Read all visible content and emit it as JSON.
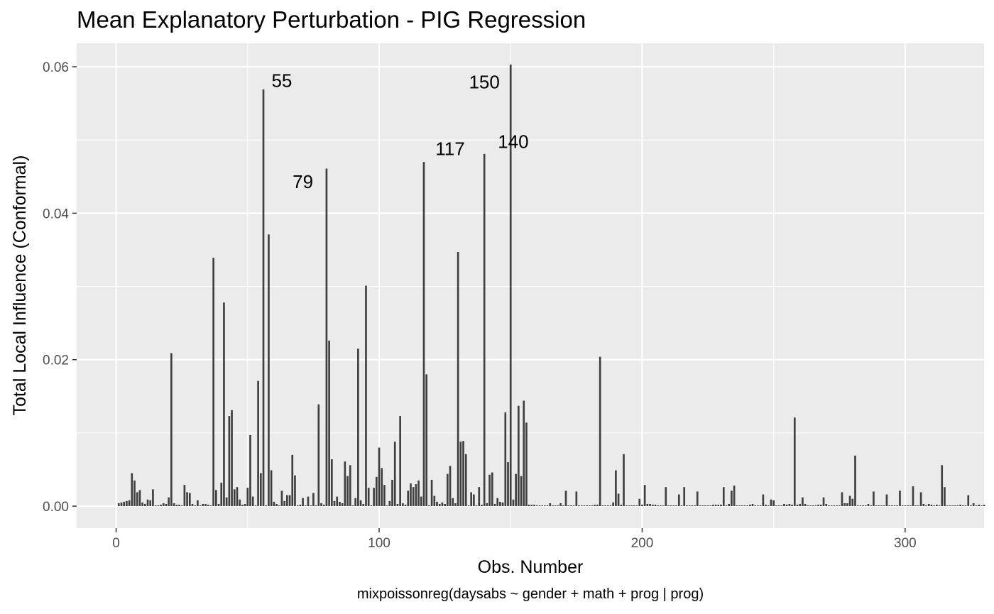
{
  "chart_data": {
    "type": "bar",
    "title": "Mean Explanatory Perturbation - PIG Regression",
    "xlabel": "Obs. Number",
    "ylabel": "Total Local Influence (Conformal)",
    "caption": "mixpoissonreg(daysabs ~ gender + math + prog | prog)",
    "xlim": [
      -15,
      330
    ],
    "ylim": [
      -0.003,
      0.0632
    ],
    "x_ticks": [
      0,
      100,
      200,
      300
    ],
    "x_tick_labels": [
      "0",
      "100",
      "200",
      "300"
    ],
    "y_ticks": [
      0.0,
      0.02,
      0.04,
      0.06
    ],
    "y_tick_labels": [
      "0.00",
      "0.02",
      "0.04",
      "0.06"
    ],
    "grid": true,
    "bar_color": "#3f3f3f",
    "panel_color": "#ebebeb",
    "grid_color": "#ffffff",
    "values": [
      0.0004,
      0.0005,
      0.0006,
      0.0007,
      0.0008,
      0.0045,
      0.0035,
      0.0019,
      0.0022,
      0.0005,
      0.0003,
      0.0009,
      0.0008,
      0.0023,
      0.0001,
      0.0001,
      0.0002,
      0.0004,
      0.0003,
      0.0012,
      0.0209,
      0.0004,
      0.0002,
      0.0002,
      0.0001,
      0.0029,
      0.0019,
      0.0018,
      0.0003,
      0.0001,
      0.0008,
      0.0001,
      0.0003,
      0.0003,
      0.0002,
      0.0001,
      0.0339,
      0.0022,
      0.0003,
      0.0032,
      0.0278,
      0.0012,
      0.0123,
      0.0131,
      0.0023,
      0.0026,
      0.0009,
      0.0002,
      0.0003,
      0.0025,
      0.0097,
      0.0013,
      0.0001,
      0.0171,
      0.0045,
      0.0569,
      0.0001,
      0.0371,
      0.0049,
      0.0006,
      0.0003,
      0.0001,
      0.0021,
      0.0007,
      0.0015,
      0.0015,
      0.007,
      0.0042,
      0.0001,
      0.0002,
      0.0011,
      0.0001,
      0.0013,
      0.0001,
      0.0018,
      0.0001,
      0.0139,
      0.0004,
      0.0002,
      0.0461,
      0.0226,
      0.0064,
      0.0007,
      0.0013,
      0.0006,
      0.0004,
      0.0061,
      0.0041,
      0.0056,
      0.0001,
      0.0011,
      0.0215,
      0.0008,
      0.0003,
      0.0301,
      0.0025,
      0.0001,
      0.0025,
      0.004,
      0.008,
      0.0052,
      0.0029,
      0.0001,
      0.0007,
      0.0036,
      0.0088,
      0.0003,
      0.0123,
      0.0004,
      0.0002,
      0.0021,
      0.0031,
      0.0026,
      0.003,
      0.0035,
      0.0013,
      0.047,
      0.018,
      0.0001,
      0.0036,
      0.0014,
      0.0006,
      0.0003,
      0.0005,
      0.0003,
      0.0044,
      0.0055,
      0.0011,
      0.0004,
      0.0347,
      0.0088,
      0.0089,
      0.0071,
      0.0001,
      0.0019,
      0.0016,
      0.0001,
      0.0026,
      0.0002,
      0.0481,
      0.0004,
      0.0043,
      0.0046,
      0.0003,
      0.0011,
      0.0006,
      0.0005,
      0.0128,
      0.006,
      0.0603,
      0.0009,
      0.0044,
      0.0137,
      0.0041,
      0.0144,
      0.0114,
      0.0002,
      0.0002,
      0.0002,
      0.0001,
      0.0001,
      0.0001,
      0.0001,
      0.0001,
      0.0004,
      0.0001,
      0.0001,
      0.0001,
      0.0004,
      0.0001,
      0.0021,
      0.0001,
      0.0001,
      0.0001,
      0.002,
      0.0001,
      0.0001,
      0.0001,
      0.0001,
      0.0001,
      0.0001,
      0.0002,
      0.0002,
      0.0204,
      0.0001,
      0.0001,
      0.0001,
      0.0001,
      0.0005,
      0.0049,
      0.0017,
      0.0002,
      0.0071,
      0.0001,
      0.0001,
      0.0001,
      0.0001,
      0.0001,
      0.001,
      0.0002,
      0.0029,
      0.0003,
      0.0003,
      0.0002,
      0.0002,
      0.0001,
      0.0001,
      0.0001,
      0.0026,
      0.0001,
      0.0001,
      0.0001,
      0.0001,
      0.0016,
      0.0001,
      0.0026,
      0.0001,
      0.0001,
      0.0001,
      0.0001,
      0.002,
      0.0001,
      0.0001,
      0.0001,
      0.0001,
      0.0001,
      0.0002,
      0.0002,
      0.0002,
      0.0002,
      0.0026,
      0.0001,
      0.0003,
      0.0021,
      0.0028,
      0.0001,
      0.0001,
      0.0001,
      0.0001,
      0.0001,
      0.0002,
      0.0003,
      0.0001,
      0.0001,
      0.0001,
      0.0016,
      0.0002,
      0.0001,
      0.0009,
      0.0008,
      0.0001,
      0.0001,
      0.0001,
      0.0003,
      0.0002,
      0.0003,
      0.0002,
      0.0121,
      0.0002,
      0.0003,
      0.0012,
      0.0003,
      0.0001,
      0.0001,
      0.0001,
      0.0001,
      0.0002,
      0.0002,
      0.0012,
      0.0003,
      0.0001,
      0.0001,
      0.0001,
      0.0001,
      0.0001,
      0.0019,
      0.0004,
      0.0004,
      0.0014,
      0.001,
      0.0069,
      0.0001,
      0.0001,
      0.0001,
      0.0001,
      0.0003,
      0.0001,
      0.002,
      0.0001,
      0.0001,
      0.0001,
      0.0001,
      0.0016,
      0.0001,
      0.0001,
      0.0001,
      0.0001,
      0.0021,
      0.0001,
      0.0001,
      0.0001,
      0.0001,
      0.0027,
      0.0001,
      0.0001,
      0.0019,
      0.0003,
      0.0001,
      0.0003,
      0.0002,
      0.0001,
      0.0002,
      0.0001,
      0.0056,
      0.0026,
      0.0001,
      0.0001,
      0.0001,
      0.0001,
      0.0001,
      0.0002,
      0.0001,
      0.0001,
      0.0015,
      0.0001,
      0.0004,
      0.0001,
      0.0002,
      0.0001,
      0.0002
    ],
    "annotations": [
      {
        "label": "55",
        "x": 63,
        "y": 0.0581
      },
      {
        "label": "79",
        "x": 71,
        "y": 0.0443
      },
      {
        "label": "117",
        "x": 127,
        "y": 0.0488
      },
      {
        "label": "140",
        "x": 151,
        "y": 0.0498
      },
      {
        "label": "150",
        "x": 140,
        "y": 0.0579
      }
    ]
  }
}
